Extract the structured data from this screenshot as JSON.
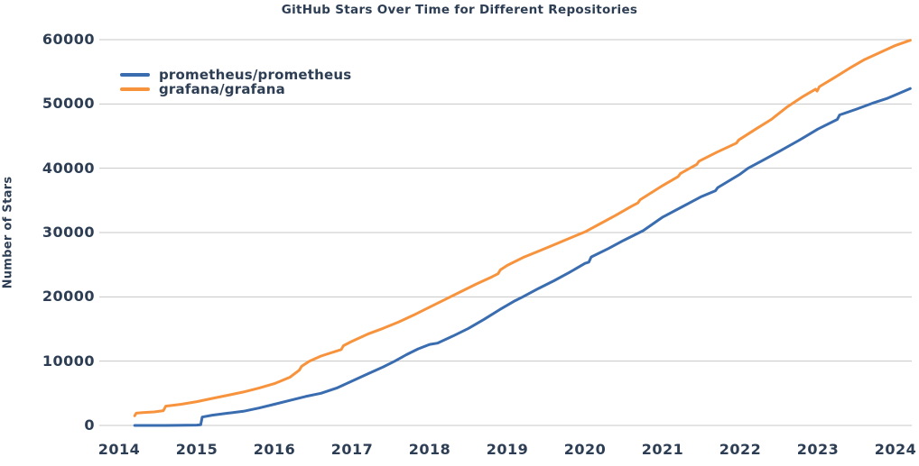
{
  "chart_data": {
    "type": "line",
    "title": "GitHub Stars Over Time for Different Repositories",
    "xlabel": "",
    "ylabel": "Number of Stars",
    "x_ticks": [
      "2014",
      "2015",
      "2016",
      "2017",
      "2018",
      "2019",
      "2020",
      "2021",
      "2022",
      "2023",
      "2024"
    ],
    "y_ticks": [
      "0",
      "10000",
      "20000",
      "30000",
      "40000",
      "50000",
      "60000"
    ],
    "xlim": [
      2013.74,
      2024.3
    ],
    "ylim": [
      0,
      60000
    ],
    "grid": "horizontal-only",
    "gridline_color": "#c7c7c7",
    "text_color": "#2d3e54",
    "legend_position": "top-left-inside",
    "series": [
      {
        "name": "prometheus/prometheus",
        "color": "#3a6cb0",
        "points": [
          [
            2014.2,
            0
          ],
          [
            2014.6,
            0
          ],
          [
            2015.0,
            50
          ],
          [
            2015.05,
            100
          ],
          [
            2015.07,
            1300
          ],
          [
            2015.2,
            1600
          ],
          [
            2015.4,
            1900
          ],
          [
            2015.6,
            2200
          ],
          [
            2015.8,
            2700
          ],
          [
            2016.0,
            3300
          ],
          [
            2016.2,
            3900
          ],
          [
            2016.4,
            4500
          ],
          [
            2016.6,
            5000
          ],
          [
            2016.8,
            5800
          ],
          [
            2017.0,
            6900
          ],
          [
            2017.2,
            8000
          ],
          [
            2017.4,
            9100
          ],
          [
            2017.55,
            10000
          ],
          [
            2017.7,
            11000
          ],
          [
            2017.85,
            11900
          ],
          [
            2018.0,
            12600
          ],
          [
            2018.1,
            12800
          ],
          [
            2018.3,
            13900
          ],
          [
            2018.5,
            15100
          ],
          [
            2018.7,
            16500
          ],
          [
            2018.9,
            18000
          ],
          [
            2019.1,
            19400
          ],
          [
            2019.2,
            20000
          ],
          [
            2019.4,
            21300
          ],
          [
            2019.6,
            22500
          ],
          [
            2019.8,
            23800
          ],
          [
            2020.0,
            25200
          ],
          [
            2020.05,
            25400
          ],
          [
            2020.08,
            26200
          ],
          [
            2020.3,
            27500
          ],
          [
            2020.5,
            28800
          ],
          [
            2020.75,
            30300
          ],
          [
            2021.0,
            32400
          ],
          [
            2021.25,
            34000
          ],
          [
            2021.5,
            35600
          ],
          [
            2021.68,
            36500
          ],
          [
            2021.71,
            37000
          ],
          [
            2022.0,
            39100
          ],
          [
            2022.1,
            40000
          ],
          [
            2022.3,
            41300
          ],
          [
            2022.5,
            42600
          ],
          [
            2022.75,
            44300
          ],
          [
            2023.0,
            46100
          ],
          [
            2023.25,
            47600
          ],
          [
            2023.28,
            48300
          ],
          [
            2023.5,
            49200
          ],
          [
            2023.7,
            50100
          ],
          [
            2023.9,
            50900
          ],
          [
            2024.0,
            51400
          ],
          [
            2024.19,
            52400
          ]
        ]
      },
      {
        "name": "grafana/grafana",
        "color": "#f8933d",
        "points": [
          [
            2014.2,
            1500
          ],
          [
            2014.22,
            1900
          ],
          [
            2014.3,
            2000
          ],
          [
            2014.45,
            2100
          ],
          [
            2014.57,
            2300
          ],
          [
            2014.6,
            3000
          ],
          [
            2014.8,
            3300
          ],
          [
            2015.0,
            3700
          ],
          [
            2015.2,
            4200
          ],
          [
            2015.4,
            4700
          ],
          [
            2015.6,
            5200
          ],
          [
            2015.8,
            5800
          ],
          [
            2016.0,
            6500
          ],
          [
            2016.2,
            7500
          ],
          [
            2016.32,
            8600
          ],
          [
            2016.35,
            9200
          ],
          [
            2016.45,
            10000
          ],
          [
            2016.6,
            10800
          ],
          [
            2016.86,
            11800
          ],
          [
            2016.89,
            12400
          ],
          [
            2017.0,
            13100
          ],
          [
            2017.2,
            14200
          ],
          [
            2017.4,
            15100
          ],
          [
            2017.6,
            16100
          ],
          [
            2017.8,
            17200
          ],
          [
            2018.0,
            18400
          ],
          [
            2018.2,
            19600
          ],
          [
            2018.4,
            20800
          ],
          [
            2018.6,
            22000
          ],
          [
            2018.8,
            23100
          ],
          [
            2018.88,
            23600
          ],
          [
            2018.91,
            24200
          ],
          [
            2019.0,
            24900
          ],
          [
            2019.2,
            26100
          ],
          [
            2019.4,
            27100
          ],
          [
            2019.6,
            28100
          ],
          [
            2019.8,
            29100
          ],
          [
            2020.0,
            30100
          ],
          [
            2020.2,
            31400
          ],
          [
            2020.4,
            32700
          ],
          [
            2020.6,
            34100
          ],
          [
            2020.68,
            34600
          ],
          [
            2020.71,
            35100
          ],
          [
            2021.0,
            37300
          ],
          [
            2021.2,
            38700
          ],
          [
            2021.23,
            39200
          ],
          [
            2021.44,
            40600
          ],
          [
            2021.47,
            41100
          ],
          [
            2021.7,
            42500
          ],
          [
            2021.95,
            43900
          ],
          [
            2021.98,
            44400
          ],
          [
            2022.2,
            46100
          ],
          [
            2022.4,
            47600
          ],
          [
            2022.6,
            49500
          ],
          [
            2022.8,
            51100
          ],
          [
            2022.97,
            52300
          ],
          [
            2022.99,
            52000
          ],
          [
            2023.02,
            52700
          ],
          [
            2023.2,
            54000
          ],
          [
            2023.4,
            55500
          ],
          [
            2023.6,
            56900
          ],
          [
            2023.8,
            58000
          ],
          [
            2024.0,
            59100
          ],
          [
            2024.19,
            59900
          ]
        ]
      }
    ]
  }
}
